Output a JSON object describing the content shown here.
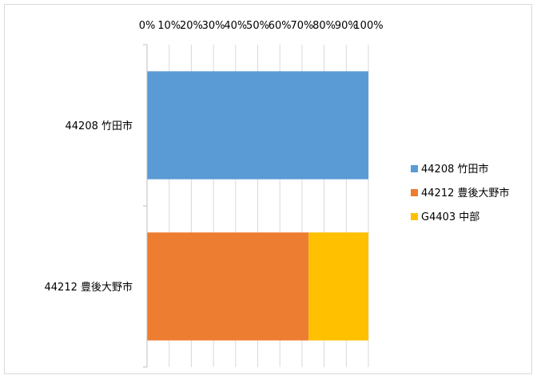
{
  "chart_data": {
    "type": "bar",
    "orientation": "horizontal",
    "stacked": "percent",
    "categories": [
      "44208 竹田市",
      "44212 豊後大野市"
    ],
    "series": [
      {
        "name": "44208 竹田市",
        "color": "#5B9BD5",
        "values": [
          100,
          0
        ]
      },
      {
        "name": "44212 豊後大野市",
        "color": "#ED7D31",
        "values": [
          0,
          73
        ]
      },
      {
        "name": "G4403 中部",
        "color": "#FFC000",
        "values": [
          0,
          27
        ]
      }
    ],
    "x_ticks": [
      "0%",
      "10%",
      "20%",
      "30%",
      "40%",
      "50%",
      "60%",
      "70%",
      "80%",
      "90%",
      "100%"
    ],
    "xlim": [
      0,
      100
    ],
    "x_axis_position": "top",
    "grid": true,
    "legend_position": "right",
    "title": "",
    "xlabel": "",
    "ylabel": ""
  }
}
